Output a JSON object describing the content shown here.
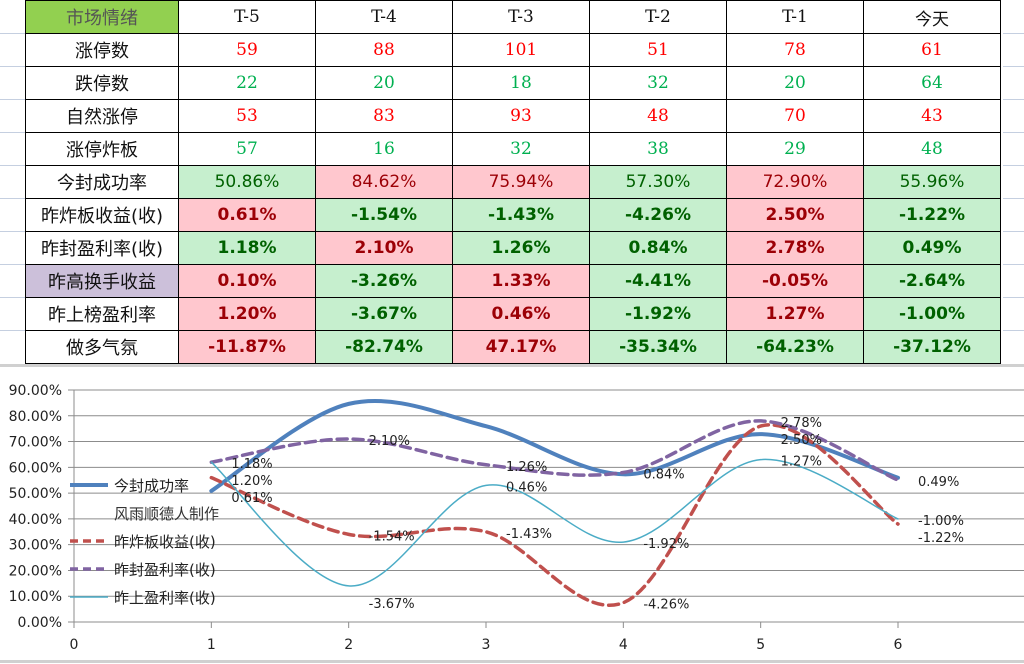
{
  "table": {
    "corner_label": "市场情绪",
    "columns": [
      "T-5",
      "T-4",
      "T-3",
      "T-2",
      "T-1",
      "今天"
    ],
    "count_rows": [
      {
        "label": "涨停数",
        "tone": "pos",
        "values": [
          "59",
          "88",
          "101",
          "51",
          "78",
          "61"
        ]
      },
      {
        "label": "跌停数",
        "tone": "neg",
        "values": [
          "22",
          "20",
          "18",
          "32",
          "20",
          "64"
        ]
      },
      {
        "label": "自然涨停",
        "tone": "pos",
        "values": [
          "53",
          "83",
          "93",
          "48",
          "70",
          "43"
        ]
      },
      {
        "label": "涨停炸板",
        "tone": "neg",
        "values": [
          "57",
          "16",
          "32",
          "38",
          "29",
          "48"
        ]
      }
    ],
    "pct_rows": [
      {
        "label": "今封成功率",
        "bold": false,
        "highlight": false,
        "values": [
          "50.86%",
          "84.62%",
          "75.94%",
          "57.30%",
          "72.90%",
          "55.96%"
        ],
        "tones": [
          "green",
          "red",
          "red",
          "green",
          "red",
          "green"
        ]
      },
      {
        "label": "昨炸板收益(收)",
        "bold": true,
        "highlight": false,
        "values": [
          "0.61%",
          "-1.54%",
          "-1.43%",
          "-4.26%",
          "2.50%",
          "-1.22%"
        ],
        "tones": [
          "red",
          "green",
          "green",
          "green",
          "red",
          "green"
        ]
      },
      {
        "label": "昨封盈利率(收)",
        "bold": true,
        "highlight": false,
        "values": [
          "1.18%",
          "2.10%",
          "1.26%",
          "0.84%",
          "2.78%",
          "0.49%"
        ],
        "tones": [
          "green",
          "red",
          "green",
          "green",
          "red",
          "green"
        ]
      },
      {
        "label": "昨高换手收益",
        "bold": true,
        "highlight": true,
        "values": [
          "0.10%",
          "-3.26%",
          "1.33%",
          "-4.41%",
          "-0.05%",
          "-2.64%"
        ],
        "tones": [
          "red",
          "green",
          "red",
          "green",
          "red",
          "green"
        ]
      },
      {
        "label": "昨上榜盈利率",
        "bold": true,
        "highlight": false,
        "values": [
          "1.20%",
          "-3.67%",
          "0.46%",
          "-1.92%",
          "1.27%",
          "-1.00%"
        ],
        "tones": [
          "red",
          "green",
          "red",
          "green",
          "red",
          "green"
        ]
      },
      {
        "label": "做多气氛",
        "bold": true,
        "highlight": false,
        "values": [
          "-11.87%",
          "-82.74%",
          "47.17%",
          "-35.34%",
          "-64.23%",
          "-37.12%"
        ],
        "tones": [
          "red",
          "green",
          "red",
          "green",
          "green",
          "green"
        ]
      }
    ],
    "colors": {
      "header_bg": "#92d050",
      "red_bg": "#ffc7ce",
      "red_text": "#9c0006",
      "green_bg": "#c6efce",
      "green_text": "#006100",
      "highlight_bg": "#ccc0da",
      "pos_text": "#ff0000",
      "neg_text": "#00b050"
    }
  },
  "chart_data": {
    "type": "line",
    "smooth": true,
    "x": [
      1,
      2,
      3,
      4,
      5,
      6
    ],
    "xlim": [
      0,
      6
    ],
    "x_ticks": [
      "0",
      "1",
      "2",
      "3",
      "4",
      "5",
      "6"
    ],
    "ylim": [
      0,
      90
    ],
    "y_ticks": [
      "0.00%",
      "10.00%",
      "20.00%",
      "30.00%",
      "40.00%",
      "50.00%",
      "60.00%",
      "70.00%",
      "80.00%",
      "90.00%"
    ],
    "grid": true,
    "legend_position": "left",
    "legend_note": "风雨顺德人制作",
    "series": [
      {
        "name": "今封成功率",
        "color": "#4f81bd",
        "dash": "solid",
        "width": 4,
        "values": [
          50.86,
          84.62,
          75.94,
          57.3,
          72.9,
          55.96
        ],
        "labels": []
      },
      {
        "name": "昨炸板收益(收)",
        "color": "#c0504d",
        "dash": "dashed",
        "width": 3.5,
        "values": [
          56,
          34,
          35,
          7.5,
          76,
          38
        ],
        "labels": [
          "0.61%",
          "-1.54%",
          "-1.43%",
          "-4.26%",
          "2.50%",
          "-1.22%"
        ]
      },
      {
        "name": "昨封盈利率(收)",
        "color": "#8064a2",
        "dash": "dashed",
        "width": 3.5,
        "values": [
          62,
          71,
          61,
          58,
          78,
          55
        ],
        "labels": [
          "1.18%",
          "2.10%",
          "1.26%",
          "0.84%",
          "2.78%",
          "0.49%"
        ]
      },
      {
        "name": "昨上盈利率(收)",
        "color": "#4bacc6",
        "dash": "solid",
        "width": 1.5,
        "values": [
          62,
          14,
          53,
          31,
          63,
          40
        ],
        "labels": [
          "1.20%",
          "-3.67%",
          "0.46%",
          "-1.92%",
          "1.27%",
          "-1.00%"
        ]
      }
    ]
  }
}
